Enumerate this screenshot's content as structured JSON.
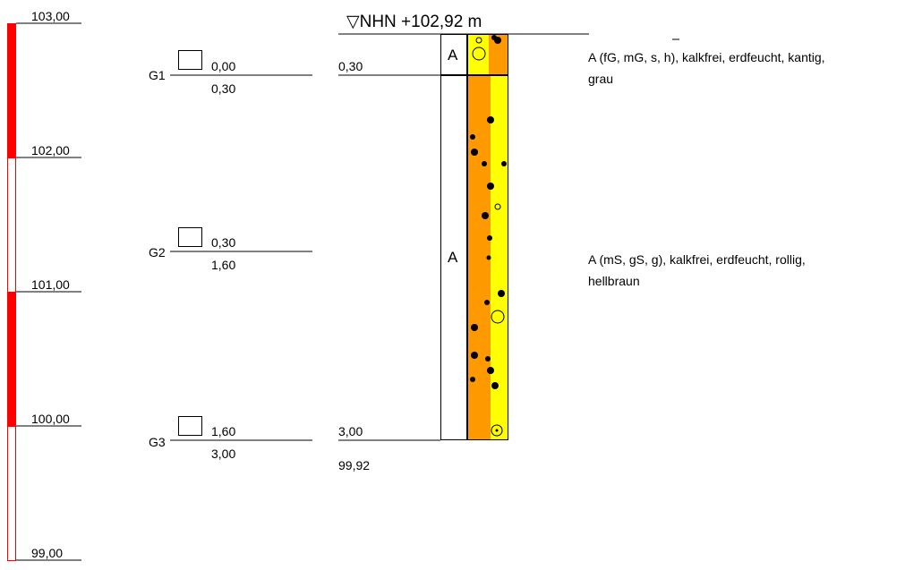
{
  "elevation_scale": {
    "labels": [
      "103,00",
      "102,00",
      "101,00",
      "100,00",
      "99,00"
    ],
    "color": "#ff0000"
  },
  "samples": [
    {
      "id": "G1",
      "top": "0,30",
      "from": "0,00",
      "to": "0,30"
    },
    {
      "id": "G2",
      "from": "0,30",
      "to": "1,60"
    },
    {
      "id": "G3",
      "bottom": "3,00",
      "from": "1,60",
      "to": "3,00"
    }
  ],
  "profile": {
    "header": "▽NHN +102,92 m",
    "base_elevation": "99,92",
    "layer_codes": [
      "A",
      "A"
    ],
    "colors": {
      "fill_yellow": "#ffff00",
      "fill_orange": "#ff9900",
      "frame": "#000000"
    }
  },
  "descriptions": [
    {
      "line1": "A (fG, mG, s, h), kalkfrei, erdfeucht, kantig,",
      "line2": "grau"
    },
    {
      "line1": "A (mS, gS, g), kalkfrei, erdfeucht, rollig,",
      "line2": "hellbraun"
    }
  ]
}
